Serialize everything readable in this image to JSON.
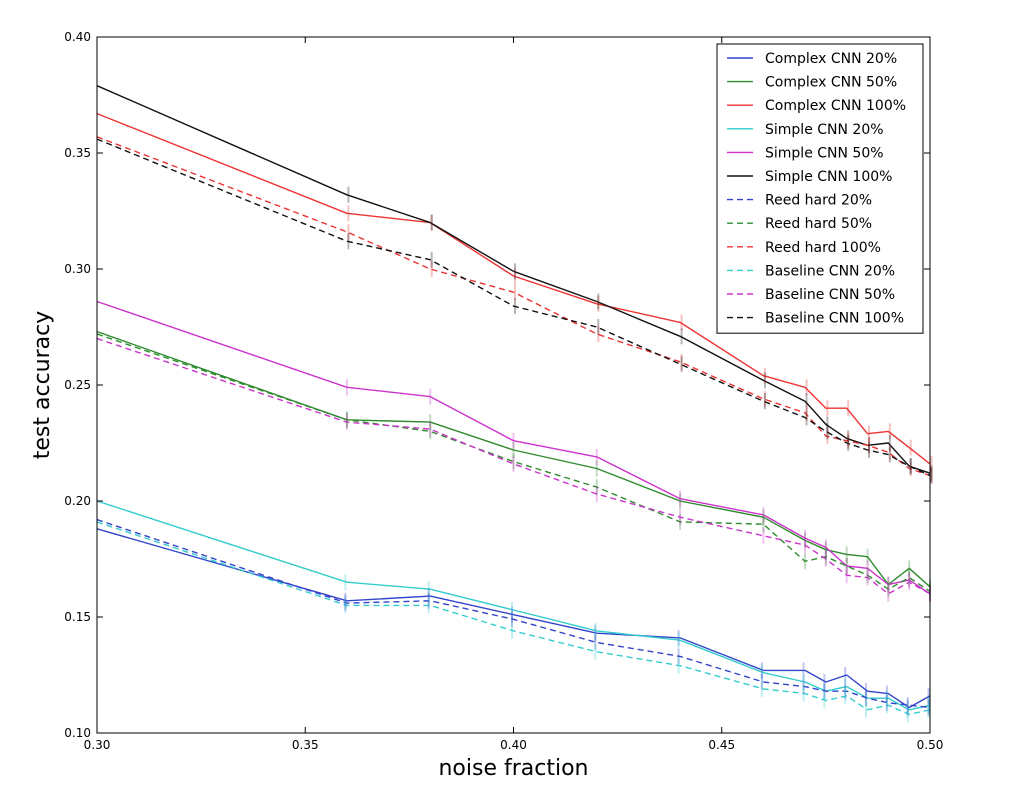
{
  "chart_data": {
    "type": "line",
    "title": "",
    "xlabel": "noise fraction",
    "ylabel": "test accuracy",
    "xlim": [
      0.3,
      0.5
    ],
    "ylim": [
      0.1,
      0.4
    ],
    "xticks": [
      0.3,
      0.35,
      0.4,
      0.45,
      0.5
    ],
    "xtick_labels": [
      "0.30",
      "0.35",
      "0.40",
      "0.45",
      "0.50"
    ],
    "yticks": [
      0.1,
      0.15,
      0.2,
      0.25,
      0.3,
      0.35,
      0.4
    ],
    "ytick_labels": [
      "0.10",
      "0.15",
      "0.20",
      "0.25",
      "0.30",
      "0.35",
      "0.40"
    ],
    "grid": false,
    "legend_position": "top-right",
    "x": [
      0.3,
      0.36,
      0.38,
      0.4,
      0.42,
      0.44,
      0.46,
      0.47,
      0.475,
      0.48,
      0.485,
      0.49,
      0.495,
      0.5
    ],
    "series": [
      {
        "name": "Complex CNN 20%",
        "color": "#3344cc",
        "style": "solid",
        "values": [
          0.188,
          0.157,
          0.159,
          0.151,
          0.143,
          0.141,
          0.127,
          0.127,
          0.122,
          0.125,
          0.118,
          0.117,
          0.111,
          0.116
        ]
      },
      {
        "name": "Complex CNN 50%",
        "color": "#2e8b2e",
        "style": "solid",
        "values": [
          0.273,
          0.235,
          0.234,
          0.222,
          0.214,
          0.2,
          0.193,
          0.183,
          0.179,
          0.177,
          0.176,
          0.164,
          0.171,
          0.163
        ]
      },
      {
        "name": "Complex CNN 100%",
        "color": "#ee3333",
        "style": "solid",
        "values": [
          0.367,
          0.324,
          0.32,
          0.297,
          0.285,
          0.277,
          0.254,
          0.249,
          0.24,
          0.24,
          0.229,
          0.23,
          0.223,
          0.216
        ]
      },
      {
        "name": "Simple CNN 20%",
        "color": "#33cccc",
        "style": "solid",
        "values": [
          0.2,
          0.165,
          0.162,
          0.153,
          0.144,
          0.14,
          0.126,
          0.122,
          0.118,
          0.12,
          0.115,
          0.115,
          0.11,
          0.112
        ]
      },
      {
        "name": "Simple CNN 50%",
        "color": "#cc33cc",
        "style": "solid",
        "values": [
          0.286,
          0.249,
          0.245,
          0.226,
          0.219,
          0.201,
          0.194,
          0.184,
          0.18,
          0.172,
          0.171,
          0.164,
          0.166,
          0.16
        ]
      },
      {
        "name": "Simple CNN 100%",
        "color": "#111111",
        "style": "solid",
        "values": [
          0.379,
          0.332,
          0.32,
          0.299,
          0.286,
          0.271,
          0.252,
          0.243,
          0.233,
          0.227,
          0.224,
          0.225,
          0.215,
          0.212
        ]
      },
      {
        "name": "Reed hard 20%",
        "color": "#3344cc",
        "style": "dashed",
        "values": [
          0.192,
          0.156,
          0.157,
          0.149,
          0.139,
          0.133,
          0.122,
          0.12,
          0.118,
          0.118,
          0.115,
          0.113,
          0.112,
          0.111
        ]
      },
      {
        "name": "Reed hard 50%",
        "color": "#2e8b2e",
        "style": "dashed",
        "values": [
          0.272,
          0.235,
          0.23,
          0.217,
          0.206,
          0.191,
          0.19,
          0.174,
          0.176,
          0.172,
          0.168,
          0.162,
          0.167,
          0.161
        ]
      },
      {
        "name": "Reed hard 100%",
        "color": "#ee3333",
        "style": "dashed",
        "values": [
          0.357,
          0.316,
          0.3,
          0.29,
          0.272,
          0.26,
          0.244,
          0.238,
          0.228,
          0.226,
          0.224,
          0.221,
          0.214,
          0.211
        ]
      },
      {
        "name": "Baseline CNN 20%",
        "color": "#33cccc",
        "style": "dashed",
        "values": [
          0.191,
          0.155,
          0.155,
          0.144,
          0.135,
          0.129,
          0.119,
          0.117,
          0.114,
          0.116,
          0.11,
          0.112,
          0.108,
          0.11
        ]
      },
      {
        "name": "Baseline CNN 50%",
        "color": "#cc33cc",
        "style": "dashed",
        "values": [
          0.27,
          0.234,
          0.231,
          0.216,
          0.203,
          0.193,
          0.185,
          0.181,
          0.175,
          0.168,
          0.167,
          0.16,
          0.165,
          0.16
        ]
      },
      {
        "name": "Baseline CNN 100%",
        "color": "#111111",
        "style": "dashed",
        "values": [
          0.356,
          0.312,
          0.304,
          0.284,
          0.275,
          0.259,
          0.243,
          0.236,
          0.23,
          0.225,
          0.222,
          0.22,
          0.215,
          0.211
        ]
      }
    ]
  }
}
